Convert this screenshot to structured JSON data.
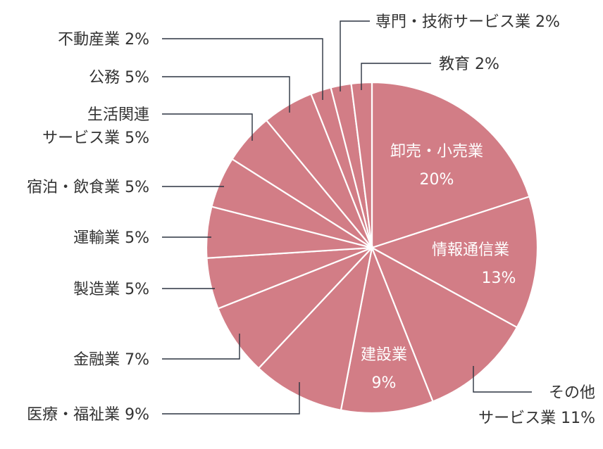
{
  "chart_data": {
    "type": "pie",
    "title": "",
    "colors": {
      "slice": "#d27d86",
      "separator": "#ffffff",
      "leader": "#2b3440",
      "text": "#333333",
      "inner_text": "#ffffff"
    },
    "slices": [
      {
        "name": "卸売・小売業",
        "value": 20,
        "value_label": "20%"
      },
      {
        "name": "情報通信業",
        "value": 13,
        "value_label": "13%"
      },
      {
        "name": "その他サービス業",
        "value": 11,
        "value_label": "11%",
        "label_lines": [
          "その他",
          "サービス業 11%"
        ]
      },
      {
        "name": "建設業",
        "value": 9,
        "value_label": "9%"
      },
      {
        "name": "医療・福祉業",
        "value": 9,
        "value_label": "9%",
        "label_lines": [
          "医療・福祉業 9%"
        ]
      },
      {
        "name": "金融業",
        "value": 7,
        "value_label": "7%",
        "label_lines": [
          "金融業 7%"
        ]
      },
      {
        "name": "製造業",
        "value": 5,
        "value_label": "5%",
        "label_lines": [
          "製造業 5%"
        ]
      },
      {
        "name": "運輸業",
        "value": 5,
        "value_label": "5%",
        "label_lines": [
          "運輸業 5%"
        ]
      },
      {
        "name": "宿泊・飲食業",
        "value": 5,
        "value_label": "5%",
        "label_lines": [
          "宿泊・飲食業 5%"
        ]
      },
      {
        "name": "生活関連サービス業",
        "value": 5,
        "value_label": "5%",
        "label_lines": [
          "生活関連",
          "サービス業 5%"
        ]
      },
      {
        "name": "公務",
        "value": 5,
        "value_label": "5%",
        "label_lines": [
          "公務 5%"
        ]
      },
      {
        "name": "不動産業",
        "value": 2,
        "value_label": "2%",
        "label_lines": [
          "不動産業 2%"
        ]
      },
      {
        "name": "専門・技術サービス業",
        "value": 2,
        "value_label": "2%",
        "label_lines": [
          "専門・技術サービス業 2%"
        ]
      },
      {
        "name": "教育",
        "value": 2,
        "value_label": "2%",
        "label_lines": [
          "教育 2%"
        ]
      }
    ]
  }
}
